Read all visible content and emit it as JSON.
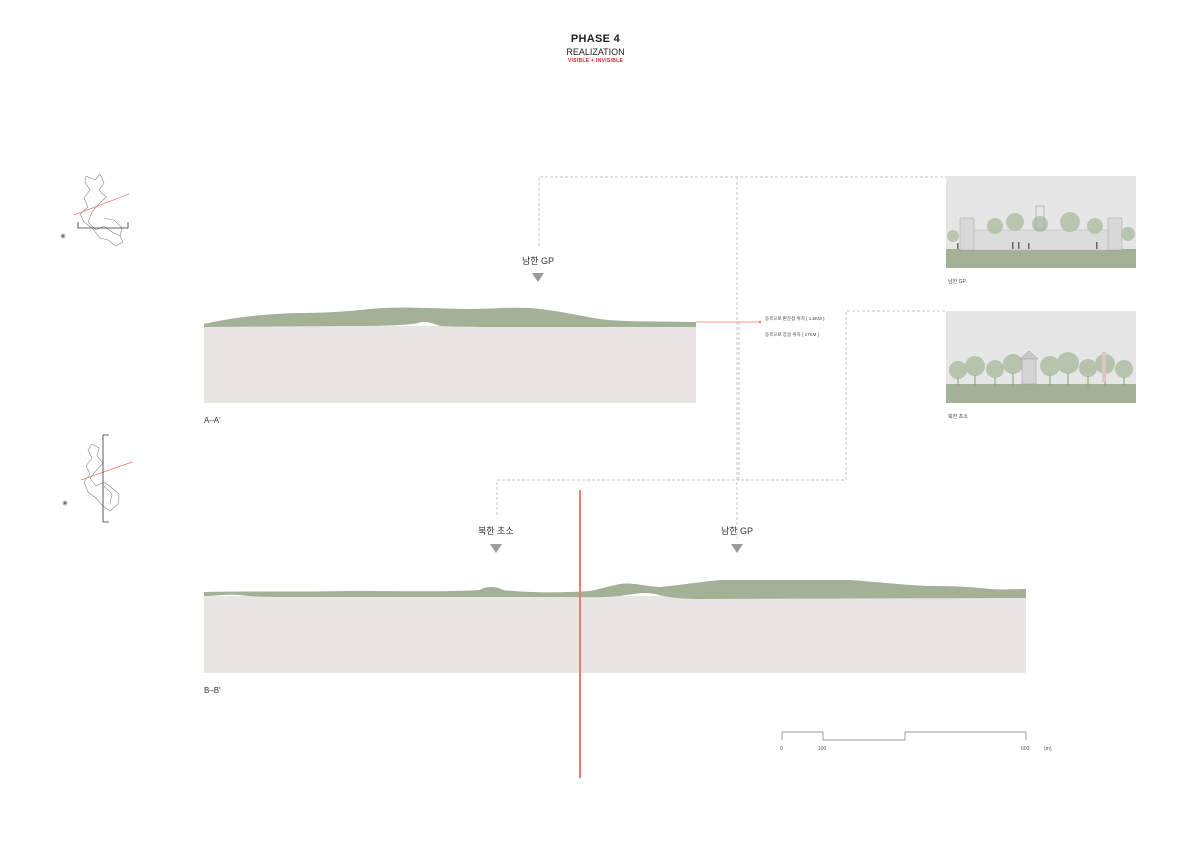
{
  "header": {
    "phase": "PHASE 4",
    "subtitle": "REALIZATION",
    "tagline": "VISIBLE + INVISIBLE"
  },
  "sections": [
    {
      "id": "a",
      "label": "A–A'",
      "markers": [
        "남한 GP"
      ]
    },
    {
      "id": "b",
      "label": "B–B'",
      "markers": [
        "북한 초소",
        "남한 GP"
      ]
    }
  ],
  "notes": [
    "동측으로 판문점 위치 ( 1.5KM )",
    "동측으로 장굴 위치 ( 17KM )"
  ],
  "photos": [
    {
      "caption": "남한 GP"
    },
    {
      "caption": "북한 초소"
    }
  ],
  "scale": {
    "ticks": [
      "0",
      "100",
      "600"
    ],
    "unit": "(m)"
  },
  "colors": {
    "terrain": "#a3b196",
    "ground": "#e7e6e3",
    "accent": "#ee7a70",
    "marker": "#9a9a9a",
    "dashed": "#b0b0b0"
  }
}
